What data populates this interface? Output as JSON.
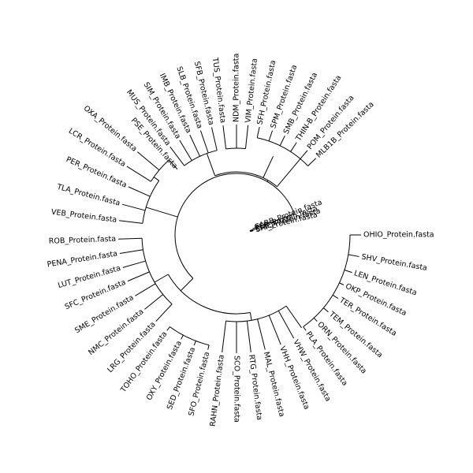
{
  "tree": {
    "type": "circular-phylogenetic-tree",
    "leaves_clockwise_from_east": [
      "OHIO_Protein.fasta",
      "SHV_Protein.fasta",
      "LEN_Protein.fasta",
      "OKP_Protein.fasta",
      "TER_Protein.fasta",
      "TEM_Protein.fasta",
      "ORN_Protein.fasta",
      "PLA_Protein.fasta",
      "VHW_Protein.fasta",
      "VHH_Protein.fasta",
      "MAL_Protein.fasta",
      "RTG_Protein.fasta",
      "SCO_Protein.fasta",
      "RAHN_Protein.fasta",
      "SFO_Protein.fasta",
      "SED_Protein.fasta",
      "OXY_Protein.fasta",
      "TOHO_Protein.fasta",
      "LRG_Protein.fasta",
      "NMC_Protein.fasta",
      "SME_Protein.fasta",
      "SFC_Protein.fasta",
      "LUT_Protein.fasta",
      "PENA_Protein.fasta",
      "ROB_Protein.fasta",
      "VEB_Protein.fasta",
      "TLA_Protein.fasta",
      "PER_Protein.fasta",
      "LCR_Protein.fasta",
      "OXA_Protein.fasta",
      "PSE_Protein.fasta",
      "MUS_Protein.fasta",
      "SIM_Protein.fasta",
      "IMB_Protein.fasta",
      "SLB_Protein.fasta",
      "SFB_Protein.fasta",
      "TUS_Protein.fasta",
      "NDM_Protein.fasta",
      "VIM_Protein.fasta",
      "SFH_Protein.fasta",
      "SPM_Protein.fasta",
      "SMB_Protein.fasta",
      "THIN-B_Protein.fasta",
      "POM_Protein.fasta",
      "MLB1B_Protein.fasta",
      "CARB_Protein.fasta",
      "PER_Protein.fasta",
      "CME_Protein.fasta",
      "SHI_Protein.fasta"
    ]
  }
}
